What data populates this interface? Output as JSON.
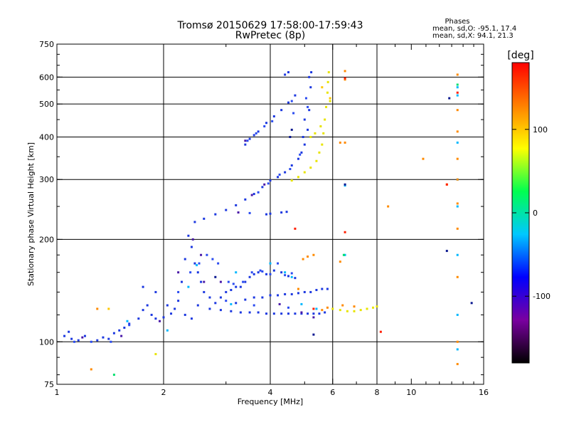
{
  "header": {
    "title_line1": "Tromsø 20150629 17:58:00-17:59:43",
    "title_line2": "RwPretec (8p)",
    "stats_title": "Phases",
    "stats_o": "mean, sd,O: -95.1, 17.4",
    "stats_x": "mean, sd,X:  94.1, 21.3"
  },
  "chart_data": {
    "type": "scatter",
    "xlabel": "Frequency [MHz]",
    "ylabel": "Stationary phase Virtual Height [km]",
    "xscale": "log2",
    "yscale": "log",
    "xlim": [
      1,
      16
    ],
    "ylim": [
      75,
      750
    ],
    "xticks": [
      {
        "v": 1,
        "label": "1"
      },
      {
        "v": 2,
        "label": "2"
      },
      {
        "v": 4,
        "label": "4"
      },
      {
        "v": 6,
        "label": "6"
      },
      {
        "v": 8,
        "label": "8"
      },
      {
        "v": 10,
        "label": "10"
      },
      {
        "v": 16,
        "label": "16"
      }
    ],
    "xgrid": [
      2,
      4,
      6,
      8
    ],
    "yticks": [
      {
        "v": 75,
        "label": "75"
      },
      {
        "v": 100,
        "label": "100"
      },
      {
        "v": 200,
        "label": "200"
      },
      {
        "v": 300,
        "label": "300"
      },
      {
        "v": 400,
        "label": "400"
      },
      {
        "v": 500,
        "label": "500"
      },
      {
        "v": 600,
        "label": "600"
      },
      {
        "v": 750,
        "label": "750"
      }
    ],
    "ygrid": [
      100,
      200,
      300,
      400,
      500,
      600
    ],
    "grid": true,
    "colorbar": {
      "label": "[deg]",
      "range": [
        -180,
        180
      ],
      "ticks": [
        {
          "v": 100,
          "label": "100"
        },
        {
          "v": 0,
          "label": "0"
        },
        {
          "v": -100,
          "label": "-100"
        }
      ],
      "stops": [
        "#000000",
        "#7a00a0",
        "#0000ff",
        "#00c8ff",
        "#00ff50",
        "#ffff00",
        "#ff8000",
        "#ff0000"
      ]
    },
    "series": [
      {
        "color": "#1c38e0",
        "points": [
          [
            1.05,
            104
          ],
          [
            1.08,
            107
          ],
          [
            1.1,
            102
          ],
          [
            1.15,
            101
          ],
          [
            1.2,
            104
          ],
          [
            1.3,
            101
          ],
          [
            1.35,
            103
          ],
          [
            1.4,
            102
          ],
          [
            1.45,
            106
          ],
          [
            1.5,
            108
          ],
          [
            1.55,
            110
          ],
          [
            1.6,
            113
          ],
          [
            1.7,
            117
          ],
          [
            1.75,
            124
          ],
          [
            1.8,
            128
          ],
          [
            1.85,
            120
          ],
          [
            1.9,
            117
          ],
          [
            2.0,
            118
          ],
          [
            2.1,
            121
          ],
          [
            2.15,
            125
          ],
          [
            2.2,
            132
          ],
          [
            2.25,
            150
          ],
          [
            2.3,
            175
          ],
          [
            2.35,
            205
          ],
          [
            2.4,
            190
          ],
          [
            2.45,
            170
          ],
          [
            2.5,
            160
          ],
          [
            2.55,
            150
          ],
          [
            2.6,
            140
          ],
          [
            2.7,
            135
          ],
          [
            2.8,
            130
          ],
          [
            2.9,
            135
          ],
          [
            3.0,
            140
          ],
          [
            3.1,
            142
          ],
          [
            3.2,
            145
          ],
          [
            3.3,
            145
          ],
          [
            3.4,
            150
          ],
          [
            3.5,
            155
          ],
          [
            3.6,
            158
          ],
          [
            3.7,
            160
          ],
          [
            3.9,
            158
          ],
          [
            4.1,
            162
          ],
          [
            4.3,
            160
          ],
          [
            4.5,
            156
          ],
          [
            4.7,
            154
          ],
          [
            2.5,
            128
          ],
          [
            2.7,
            125
          ],
          [
            2.9,
            124
          ],
          [
            3.1,
            123
          ],
          [
            3.3,
            122
          ],
          [
            3.5,
            122
          ],
          [
            3.7,
            122
          ],
          [
            3.9,
            121
          ],
          [
            4.1,
            121
          ],
          [
            4.3,
            121
          ],
          [
            4.5,
            121
          ],
          [
            4.7,
            121
          ],
          [
            4.9,
            121
          ],
          [
            5.1,
            121
          ],
          [
            5.3,
            121
          ],
          [
            5.5,
            121
          ],
          [
            5.7,
            122
          ],
          [
            3.2,
            130
          ],
          [
            3.4,
            133
          ],
          [
            3.6,
            135
          ],
          [
            3.8,
            135
          ],
          [
            4.0,
            137
          ],
          [
            4.2,
            137
          ],
          [
            4.4,
            138
          ],
          [
            4.6,
            138
          ],
          [
            4.8,
            139
          ],
          [
            5.0,
            140
          ],
          [
            5.2,
            140
          ],
          [
            5.4,
            142
          ],
          [
            5.6,
            143
          ],
          [
            5.8,
            143
          ],
          [
            2.45,
            225
          ],
          [
            2.6,
            230
          ],
          [
            2.8,
            237
          ],
          [
            3.0,
            244
          ],
          [
            3.2,
            252
          ],
          [
            3.4,
            262
          ],
          [
            3.6,
            272
          ],
          [
            3.8,
            285
          ],
          [
            4.0,
            298
          ],
          [
            4.2,
            305
          ],
          [
            4.4,
            315
          ],
          [
            4.6,
            330
          ],
          [
            4.8,
            345
          ],
          [
            4.9,
            360
          ],
          [
            5.0,
            380
          ],
          [
            5.1,
            420
          ],
          [
            5.15,
            480
          ],
          [
            5.2,
            560
          ],
          [
            5.22,
            620
          ],
          [
            5.15,
            600
          ],
          [
            5.0,
            450
          ],
          [
            4.95,
            400
          ],
          [
            3.4,
            380
          ],
          [
            3.5,
            395
          ],
          [
            3.6,
            405
          ],
          [
            3.7,
            415
          ],
          [
            3.9,
            440
          ],
          [
            4.1,
            460
          ],
          [
            4.3,
            480
          ],
          [
            4.5,
            505
          ],
          [
            4.7,
            530
          ],
          [
            4.4,
            610
          ],
          [
            4.5,
            620
          ],
          [
            3.9,
            237
          ],
          [
            4.0,
            238
          ],
          [
            4.3,
            240
          ],
          [
            4.45,
            241
          ],
          [
            2.3,
            120
          ],
          [
            2.4,
            117
          ],
          [
            1.9,
            140
          ],
          [
            1.75,
            145
          ],
          [
            2.05,
            128
          ]
        ]
      },
      {
        "color": "#2a4bf0",
        "points": [
          [
            1.12,
            100
          ],
          [
            1.25,
            100
          ],
          [
            1.42,
            100
          ],
          [
            1.6,
            112
          ],
          [
            2.2,
            140
          ],
          [
            2.38,
            160
          ],
          [
            2.52,
            170
          ],
          [
            2.65,
            180
          ],
          [
            2.75,
            175
          ],
          [
            2.85,
            170
          ],
          [
            3.05,
            150
          ],
          [
            3.15,
            148
          ],
          [
            3.35,
            150
          ],
          [
            3.55,
            160
          ],
          [
            3.75,
            162
          ],
          [
            4.2,
            170
          ],
          [
            3.5,
            239
          ],
          [
            3.7,
            275
          ],
          [
            3.95,
            292
          ],
          [
            4.25,
            310
          ],
          [
            4.55,
            322
          ],
          [
            4.85,
            355
          ],
          [
            3.45,
            390
          ],
          [
            3.65,
            410
          ],
          [
            3.85,
            430
          ],
          [
            4.05,
            445
          ],
          [
            4.6,
            510
          ],
          [
            4.65,
            470
          ],
          [
            5.1,
            490
          ],
          [
            5.05,
            520
          ],
          [
            3.8,
            161
          ],
          [
            4.0,
            158
          ],
          [
            4.4,
            157
          ],
          [
            4.6,
            159
          ],
          [
            3.0,
            132
          ],
          [
            3.6,
            128
          ],
          [
            4.5,
            126
          ]
        ]
      },
      {
        "color": "#4a1aa8",
        "points": [
          [
            1.18,
            103
          ],
          [
            1.52,
            104
          ],
          [
            1.95,
            115
          ],
          [
            2.42,
            200
          ],
          [
            2.55,
            180
          ],
          [
            2.9,
            150
          ],
          [
            3.25,
            240
          ],
          [
            3.55,
            270
          ],
          [
            3.85,
            290
          ],
          [
            3.4,
            390
          ],
          [
            4.25,
            129
          ],
          [
            4.9,
            122
          ],
          [
            5.3,
            118
          ],
          [
            2.6,
            150
          ],
          [
            2.2,
            160
          ]
        ]
      },
      {
        "color": "#00b8ff",
        "points": [
          [
            1.58,
            115
          ],
          [
            2.05,
            108
          ],
          [
            2.35,
            145
          ],
          [
            2.48,
            168
          ],
          [
            3.2,
            160
          ],
          [
            4.0,
            170
          ],
          [
            4.4,
            160
          ],
          [
            4.6,
            155
          ],
          [
            5.4,
            125
          ],
          [
            6.5,
            180
          ],
          [
            6.5,
            288
          ],
          [
            13.5,
            530
          ],
          [
            13.5,
            385
          ],
          [
            13.5,
            300
          ],
          [
            13.5,
            250
          ],
          [
            13.5,
            180
          ],
          [
            13.5,
            120
          ],
          [
            13.5,
            95
          ],
          [
            13.5,
            560
          ],
          [
            3.1,
            129
          ],
          [
            4.9,
            129
          ]
        ]
      },
      {
        "color": "#e8e400",
        "points": [
          [
            4.6,
            298
          ],
          [
            4.8,
            305
          ],
          [
            5.0,
            315
          ],
          [
            5.2,
            325
          ],
          [
            5.4,
            340
          ],
          [
            5.5,
            360
          ],
          [
            5.6,
            380
          ],
          [
            5.65,
            410
          ],
          [
            5.7,
            450
          ],
          [
            5.75,
            490
          ],
          [
            5.8,
            540
          ],
          [
            5.82,
            580
          ],
          [
            5.85,
            620
          ],
          [
            5.9,
            510
          ],
          [
            5.2,
            400
          ],
          [
            5.35,
            410
          ],
          [
            5.55,
            430
          ],
          [
            6.0,
            125
          ],
          [
            6.3,
            124
          ],
          [
            6.6,
            123
          ],
          [
            6.9,
            123
          ],
          [
            7.2,
            124
          ],
          [
            7.5,
            125
          ],
          [
            7.8,
            126
          ],
          [
            8.0,
            127
          ],
          [
            1.9,
            92
          ]
        ]
      },
      {
        "color": "#ff8a00",
        "points": [
          [
            1.3,
            125
          ],
          [
            1.25,
            83
          ],
          [
            4.95,
            175
          ],
          [
            5.1,
            178
          ],
          [
            5.3,
            180
          ],
          [
            6.5,
            625
          ],
          [
            6.5,
            590
          ],
          [
            6.3,
            385
          ],
          [
            6.5,
            385
          ],
          [
            6.3,
            172
          ],
          [
            8.6,
            250
          ],
          [
            10.8,
            345
          ],
          [
            12.6,
            290
          ],
          [
            13.5,
            610
          ],
          [
            13.5,
            480
          ],
          [
            13.5,
            415
          ],
          [
            13.5,
            345
          ],
          [
            13.5,
            300
          ],
          [
            13.5,
            255
          ],
          [
            13.5,
            215
          ],
          [
            13.5,
            155
          ],
          [
            13.5,
            100
          ],
          [
            13.5,
            86
          ],
          [
            4.8,
            143
          ],
          [
            5.6,
            124
          ],
          [
            5.8,
            126
          ],
          [
            6.4,
            128
          ],
          [
            6.9,
            127
          ]
        ]
      },
      {
        "color": "#ff1e00",
        "points": [
          [
            6.5,
            595
          ],
          [
            6.5,
            210
          ],
          [
            8.2,
            107
          ],
          [
            12.6,
            290
          ],
          [
            13.5,
            540
          ],
          [
            5.3,
            125
          ],
          [
            4.7,
            215
          ]
        ]
      },
      {
        "color": "#ffc800",
        "points": [
          [
            1.4,
            125
          ],
          [
            5.9,
            520
          ],
          [
            5.6,
            560
          ]
        ]
      },
      {
        "color": "#0a1890",
        "points": [
          [
            4.55,
            400
          ],
          [
            4.6,
            420
          ],
          [
            5.3,
            105
          ],
          [
            6.5,
            290
          ],
          [
            12.6,
            185
          ],
          [
            12.8,
            520
          ],
          [
            14.8,
            130
          ],
          [
            2.8,
            155
          ]
        ]
      },
      {
        "color": "#00e06e",
        "points": [
          [
            1.45,
            80
          ],
          [
            6.45,
            180
          ],
          [
            13.5,
            570
          ]
        ]
      }
    ]
  }
}
